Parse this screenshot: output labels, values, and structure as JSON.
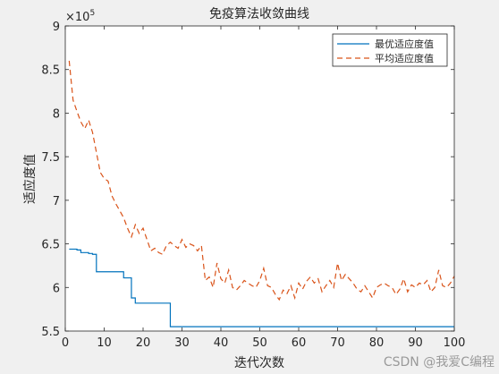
{
  "chart_data": {
    "type": "line",
    "title": "免疫算法收敛曲线",
    "xlabel": "迭代次数",
    "ylabel": "适应度值",
    "y_exponent_label": "×10",
    "y_exponent_power": "5",
    "xlim": [
      0,
      100
    ],
    "ylim": [
      5.5,
      9
    ],
    "x_ticks": [
      0,
      10,
      20,
      30,
      40,
      50,
      60,
      70,
      80,
      90,
      100
    ],
    "x_tick_labels": [
      "0",
      "10",
      "20",
      "30",
      "40",
      "50",
      "60",
      "70",
      "80",
      "90",
      "100"
    ],
    "y_ticks": [
      5.5,
      6,
      6.5,
      7,
      7.5,
      8,
      8.5,
      9
    ],
    "y_tick_labels": [
      "5.5",
      "6",
      "6.5",
      "7",
      "7.5",
      "8",
      "8.5",
      "9"
    ],
    "grid": false,
    "legend_position": "top-right",
    "series": [
      {
        "name": "最优适应度值",
        "color": "#0072bd",
        "style": "solid",
        "x": [
          1,
          2,
          3,
          4,
          5,
          6,
          7,
          8,
          9,
          10,
          11,
          12,
          13,
          14,
          15,
          16,
          17,
          18,
          19,
          20,
          21,
          22,
          23,
          24,
          25,
          26,
          27,
          100
        ],
        "y": [
          6.44,
          6.44,
          6.43,
          6.4,
          6.4,
          6.39,
          6.38,
          6.18,
          6.18,
          6.18,
          6.18,
          6.18,
          6.18,
          6.18,
          6.11,
          6.11,
          5.88,
          5.82,
          5.82,
          5.82,
          5.82,
          5.82,
          5.82,
          5.82,
          5.82,
          5.82,
          5.55,
          5.55
        ]
      },
      {
        "name": "平均适应度值",
        "color": "#d95319",
        "style": "dashed",
        "x": [
          1,
          2,
          3,
          4,
          5,
          6,
          7,
          8,
          9,
          10,
          11,
          12,
          13,
          14,
          15,
          16,
          17,
          18,
          19,
          20,
          21,
          22,
          23,
          24,
          25,
          26,
          27,
          28,
          29,
          30,
          31,
          32,
          33,
          34,
          35,
          36,
          37,
          38,
          39,
          40,
          41,
          42,
          43,
          44,
          45,
          46,
          47,
          48,
          49,
          50,
          51,
          52,
          53,
          54,
          55,
          56,
          57,
          58,
          59,
          60,
          61,
          62,
          63,
          64,
          65,
          66,
          67,
          68,
          69,
          70,
          71,
          72,
          73,
          74,
          75,
          76,
          77,
          78,
          79,
          80,
          81,
          82,
          83,
          84,
          85,
          86,
          87,
          88,
          89,
          90,
          91,
          92,
          93,
          94,
          95,
          96,
          97,
          98,
          99,
          100
        ],
        "y": [
          8.6,
          8.15,
          8.02,
          7.9,
          7.82,
          7.92,
          7.78,
          7.55,
          7.32,
          7.25,
          7.22,
          7.05,
          6.96,
          6.88,
          6.8,
          6.68,
          6.58,
          6.72,
          6.62,
          6.68,
          6.55,
          6.42,
          6.45,
          6.4,
          6.38,
          6.48,
          6.52,
          6.48,
          6.45,
          6.55,
          6.46,
          6.5,
          6.48,
          6.42,
          6.48,
          6.08,
          6.12,
          6.0,
          6.28,
          6.1,
          6.05,
          6.2,
          6.0,
          5.97,
          6.02,
          6.08,
          6.05,
          6.02,
          6.0,
          6.08,
          6.22,
          6.02,
          6.0,
          5.92,
          5.86,
          5.97,
          5.93,
          6.02,
          5.88,
          6.05,
          5.98,
          6.07,
          6.12,
          6.05,
          6.1,
          5.95,
          6.02,
          6.08,
          6.0,
          6.28,
          6.08,
          6.15,
          6.1,
          6.05,
          5.98,
          5.95,
          6.02,
          5.95,
          5.88,
          6.0,
          6.03,
          6.05,
          6.02,
          6.0,
          5.92,
          5.98,
          6.1,
          5.95,
          6.03,
          6.0,
          6.05,
          6.03,
          6.08,
          5.95,
          6.0,
          6.2,
          6.02,
          6.0,
          6.05,
          6.13
        ]
      }
    ]
  },
  "watermark": "CSDN @我爱C编程"
}
